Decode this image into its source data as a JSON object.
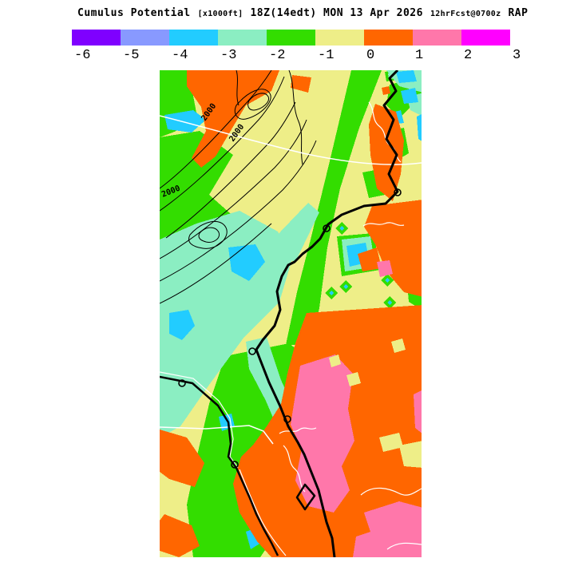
{
  "title": {
    "product": "Cumulus Potential",
    "units": "[x1000ft]",
    "valid_time": "18Z(14edt) MON 13 Apr 2026",
    "forecast_info": "12hrFcst@0700z",
    "model": "RAP"
  },
  "legend": {
    "tick_labels": [
      "-6",
      "-5",
      "-4",
      "-3",
      "-2",
      "-1",
      "0",
      "1",
      "2",
      "3"
    ],
    "colors": [
      "#7F00FF",
      "#8899FF",
      "#22CCFF",
      "#8BEEC2",
      "#33DD00",
      "#EEEE88",
      "#FF6600",
      "#FF77AA",
      "#FF00FF"
    ],
    "units": "x1000ft"
  },
  "map": {
    "contour_label": "2000",
    "background_color": "#EEEE88",
    "state_border_color": "#FFFFFF",
    "coastline_color": "#000000"
  },
  "chart_data": {
    "type": "heatmap",
    "title": "Cumulus Potential (x1000ft)",
    "subtitle": "18Z(14edt) MON 13 Apr 2026 - 12hrFcst@0700z - RAP",
    "scale_values": [
      -6,
      -5,
      -4,
      -3,
      -2,
      -1,
      0,
      1,
      2,
      3
    ],
    "scale_colors": [
      "#7F00FF",
      "#8899FF",
      "#22CCFF",
      "#8BEEC2",
      "#33DD00",
      "#EEEE88",
      "#FF6600",
      "#FF77AA",
      "#FF00FF"
    ],
    "terrain_contour_value_ft": 2000,
    "legend_position": "top"
  }
}
